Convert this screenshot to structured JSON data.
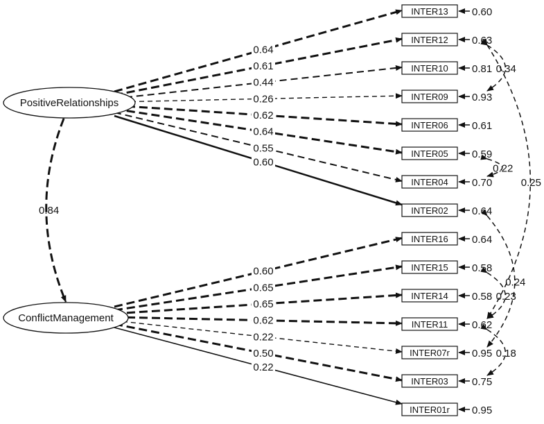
{
  "latent": [
    {
      "id": "PR",
      "label": "PositiveRelationships"
    },
    {
      "id": "CM",
      "label": "ConflictManagement"
    }
  ],
  "latent_correlation": {
    "value": "0.84",
    "style": "dashed-bold"
  },
  "indicators": [
    {
      "label": "INTER13",
      "factor": "PR",
      "loading": "0.64",
      "residual": "0.60",
      "style": "dashed-bold"
    },
    {
      "label": "INTER12",
      "factor": "PR",
      "loading": "0.61",
      "residual": "0.63",
      "style": "dashed-bold"
    },
    {
      "label": "INTER10",
      "factor": "PR",
      "loading": "0.44",
      "residual": "0.81",
      "style": "dashed"
    },
    {
      "label": "INTER09",
      "factor": "PR",
      "loading": "0.26",
      "residual": "0.93",
      "style": "dashed-thin"
    },
    {
      "label": "INTER06",
      "factor": "PR",
      "loading": "0.62",
      "residual": "0.61",
      "style": "dashed-bold"
    },
    {
      "label": "INTER05",
      "factor": "PR",
      "loading": "0.64",
      "residual": "0.59",
      "style": "dashed-bold"
    },
    {
      "label": "INTER04",
      "factor": "PR",
      "loading": "0.55",
      "residual": "0.70",
      "style": "dashed"
    },
    {
      "label": "INTER02",
      "factor": "PR",
      "loading": "0.60",
      "residual": "0.64",
      "style": "solid"
    },
    {
      "label": "INTER16",
      "factor": "CM",
      "loading": "0.60",
      "residual": "0.64",
      "style": "dashed-bold"
    },
    {
      "label": "INTER15",
      "factor": "CM",
      "loading": "0.65",
      "residual": "0.58",
      "style": "dashed-bold"
    },
    {
      "label": "INTER14",
      "factor": "CM",
      "loading": "0.65",
      "residual": "0.58",
      "style": "dashed-bold"
    },
    {
      "label": "INTER11",
      "factor": "CM",
      "loading": "0.62",
      "residual": "0.62",
      "style": "dashed-bold"
    },
    {
      "label": "INTER07r",
      "factor": "CM",
      "loading": "0.22",
      "residual": "0.95",
      "style": "dashed-thin"
    },
    {
      "label": "INTER03",
      "factor": "CM",
      "loading": "0.50",
      "residual": "0.75",
      "style": "dashed-bold"
    },
    {
      "label": "INTER01r",
      "factor": "CM",
      "loading": "0.22",
      "residual": "0.95",
      "style": "solid-thin"
    }
  ],
  "residual_covariances": [
    {
      "a": "INTER12",
      "b": "INTER09",
      "value": "0.34"
    },
    {
      "a": "INTER05",
      "b": "INTER04",
      "value": "0.22"
    },
    {
      "a": "INTER12",
      "b": "INTER11",
      "value": "0.25"
    },
    {
      "a": "INTER15",
      "b": "INTER11",
      "value": "0.23"
    },
    {
      "a": "INTER02",
      "b": "INTER07r",
      "value": "0.24"
    },
    {
      "a": "INTER11",
      "b": "INTER03",
      "value": "0.18"
    }
  ]
}
